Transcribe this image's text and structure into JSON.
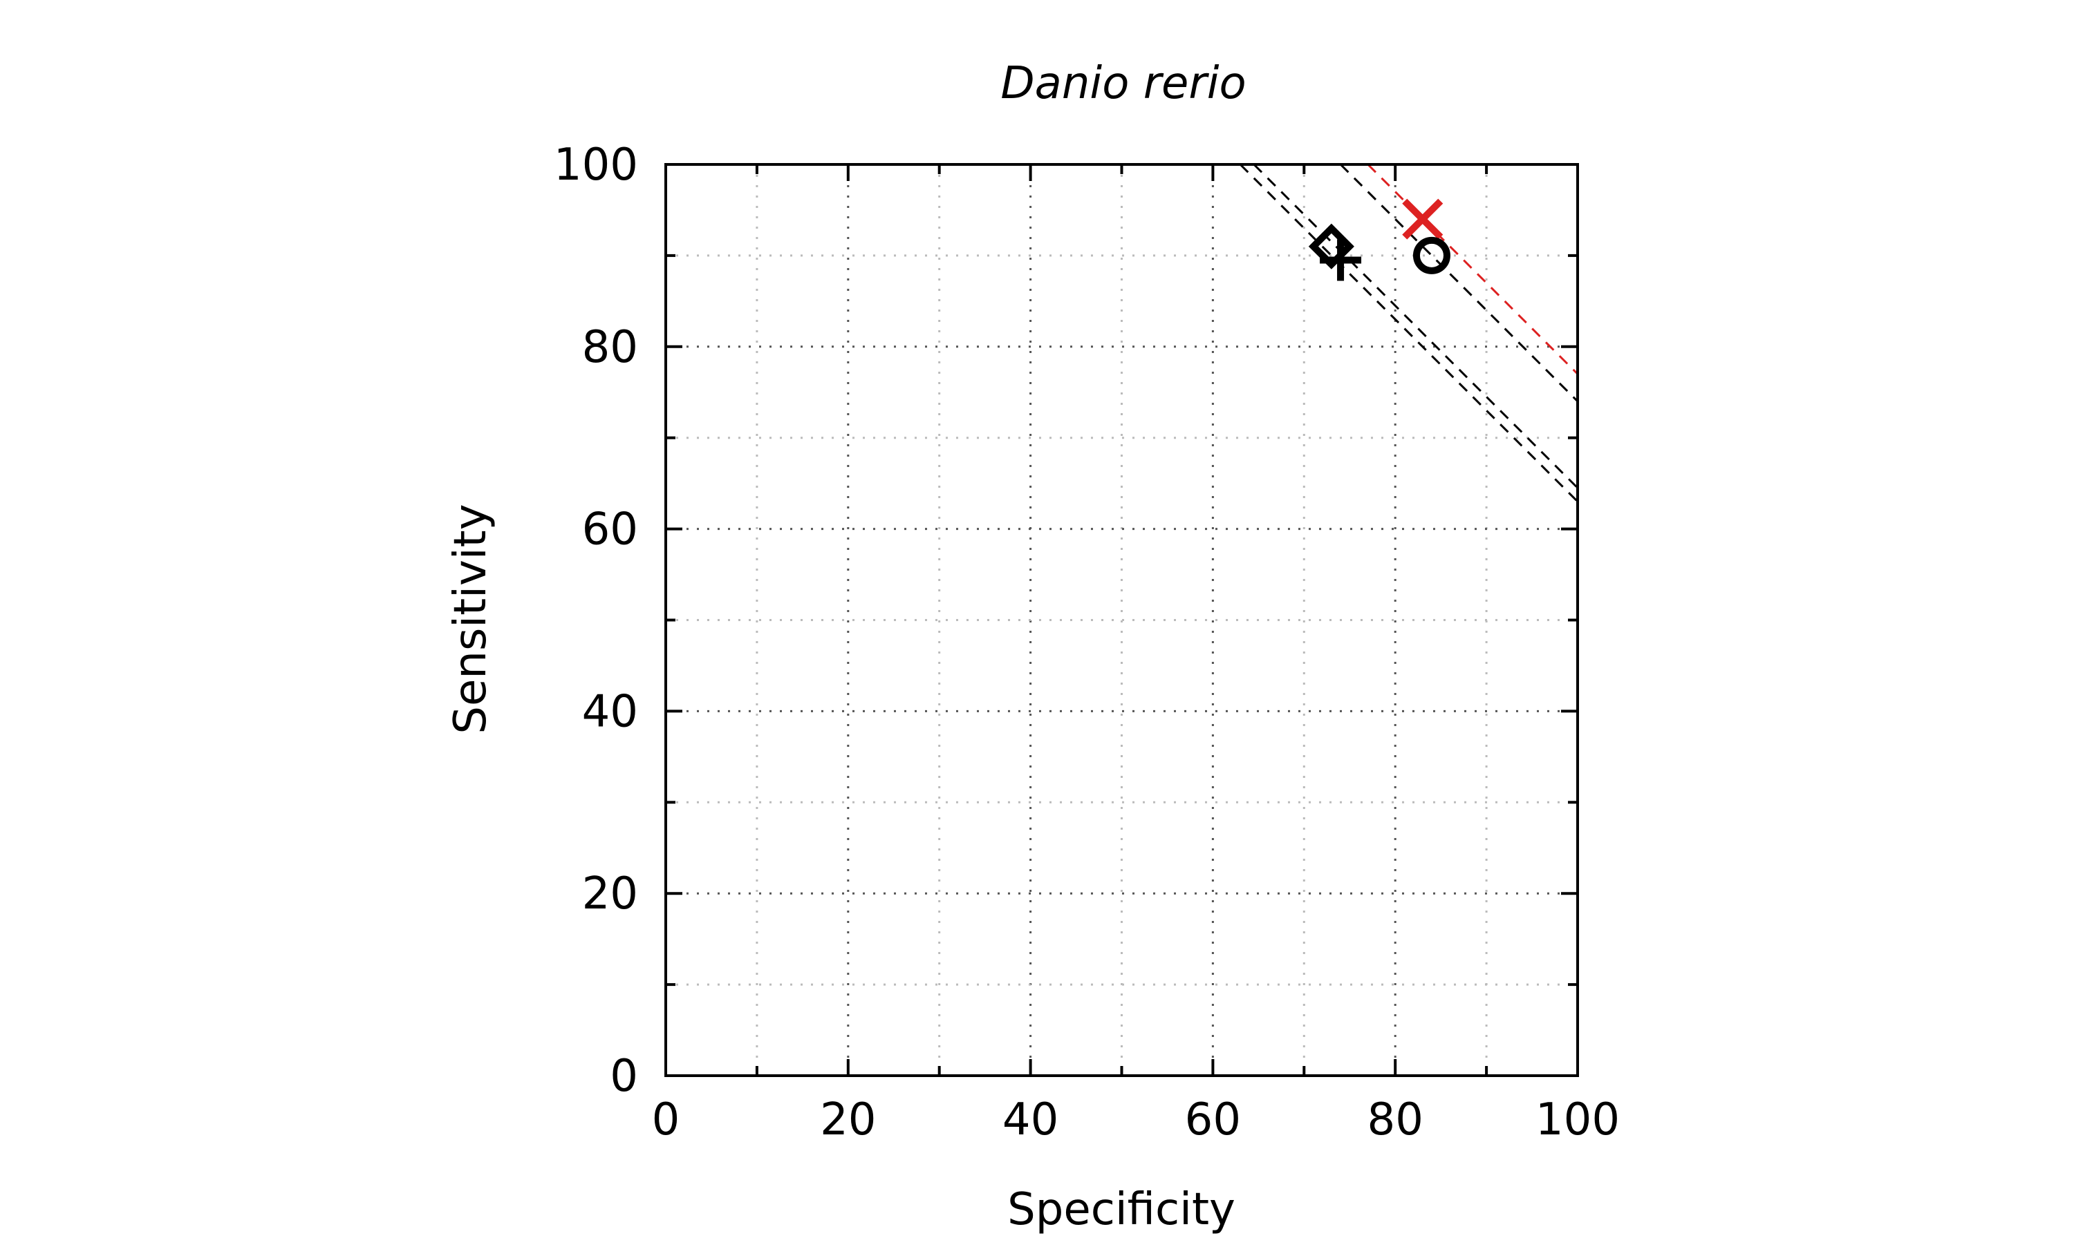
{
  "chart_data": {
    "type": "scatter",
    "title": "Danio rerio",
    "xlabel": "Specificity",
    "ylabel": "Sensitivity",
    "xlim": [
      0,
      100
    ],
    "ylim": [
      0,
      100
    ],
    "xticks": [
      0,
      20,
      40,
      60,
      80,
      100
    ],
    "yticks": [
      0,
      20,
      40,
      60,
      80,
      100
    ],
    "minor_step": 10,
    "grid": true,
    "legend": "none",
    "points": [
      {
        "marker": "diamond",
        "x": 73,
        "y": 91,
        "color": "#000000"
      },
      {
        "marker": "plus",
        "x": 74,
        "y": 89.5,
        "color": "#000000"
      },
      {
        "marker": "cross",
        "x": 83,
        "y": 94,
        "color": "#dd2222"
      },
      {
        "marker": "circle",
        "x": 84,
        "y": 90,
        "color": "#000000"
      }
    ],
    "iso_lines": [
      {
        "sum": 163,
        "color": "#000000"
      },
      {
        "sum": 164.5,
        "color": "#000000"
      },
      {
        "sum": 174,
        "color": "#000000"
      },
      {
        "sum": 177,
        "color": "#dd2222"
      }
    ]
  }
}
